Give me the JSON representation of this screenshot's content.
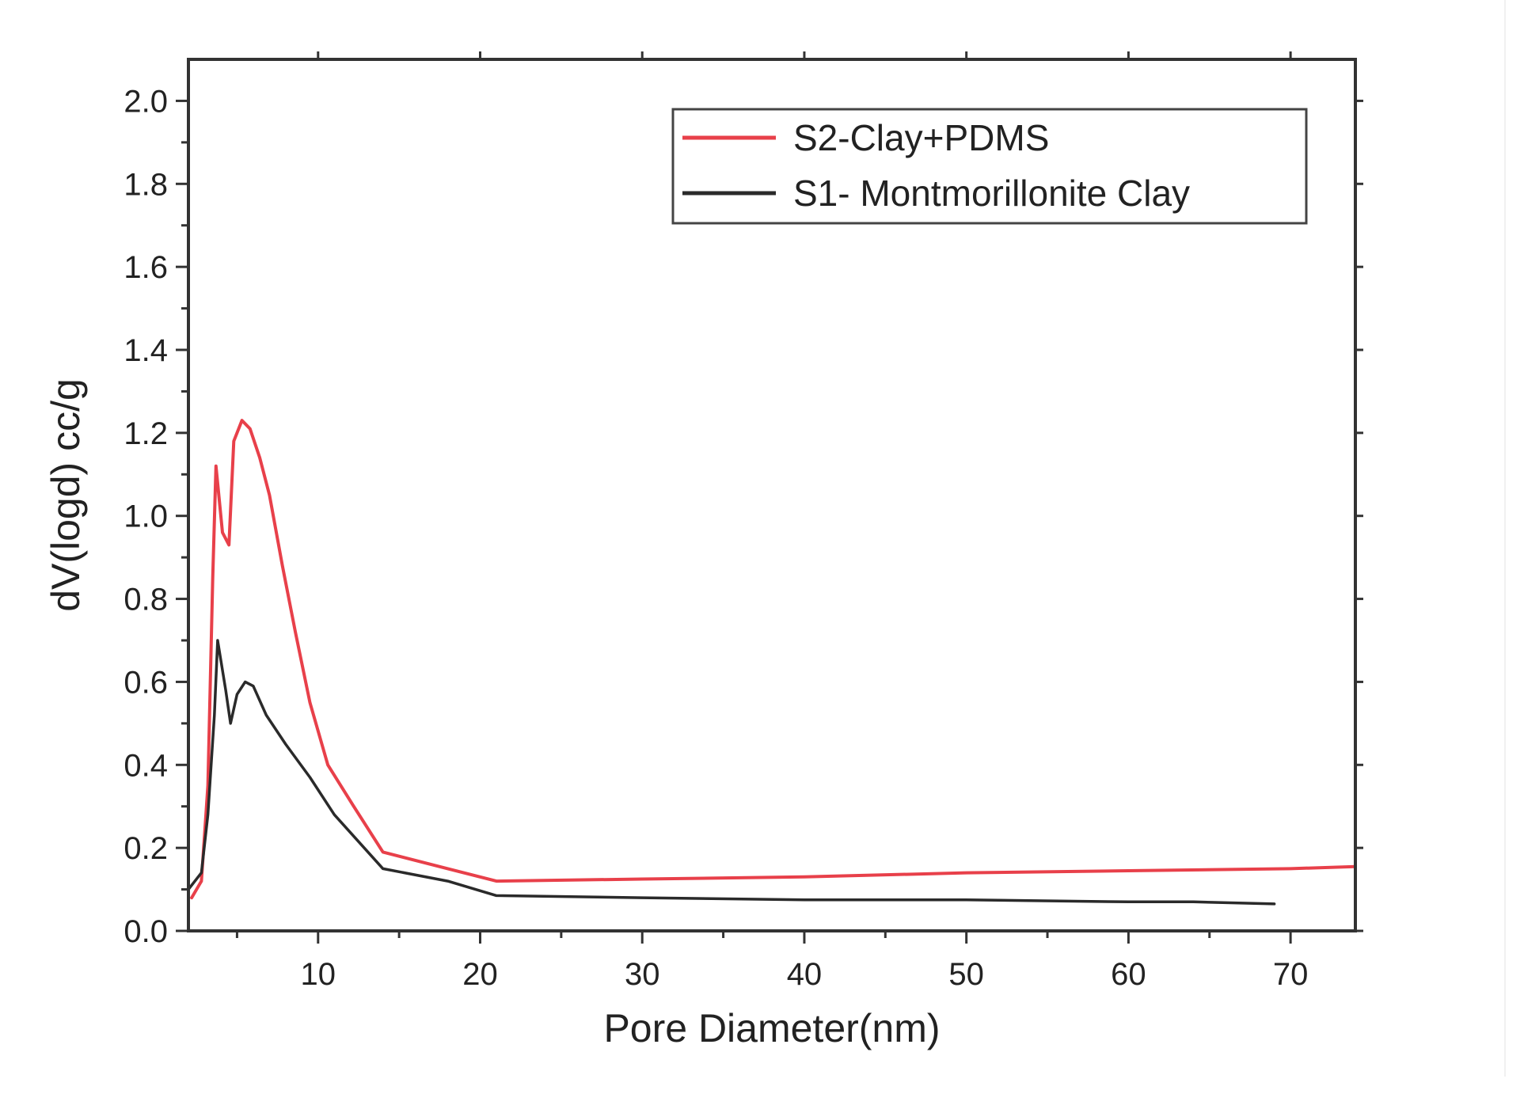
{
  "chart_data": {
    "type": "line",
    "xlabel": "Pore Diameter(nm)",
    "ylabel": "dV(logd) cc/g",
    "xlim": [
      2,
      74
    ],
    "ylim": [
      0,
      2.1
    ],
    "x_ticks": [
      10,
      20,
      30,
      40,
      50,
      60,
      70
    ],
    "x_tick_labels": [
      "10",
      "20",
      "30",
      "40",
      "50",
      "60",
      "70"
    ],
    "y_ticks": [
      0.0,
      0.2,
      0.4,
      0.6,
      0.8,
      1.0,
      1.2,
      1.4,
      1.6,
      1.8,
      2.0
    ],
    "y_tick_labels": [
      "0.0",
      "0.2",
      "0.4",
      "0.6",
      "0.8",
      "1.0",
      "1.2",
      "1.4",
      "1.6",
      "1.8",
      "2.0"
    ],
    "grid": false,
    "legend_position": "top-right",
    "series": [
      {
        "name": "S2-Clay+PDMS",
        "color": "#e8404a",
        "points": [
          [
            2.2,
            0.08
          ],
          [
            2.8,
            0.12
          ],
          [
            3.2,
            0.35
          ],
          [
            3.5,
            0.85
          ],
          [
            3.7,
            1.12
          ],
          [
            4.1,
            0.96
          ],
          [
            4.5,
            0.93
          ],
          [
            4.8,
            1.18
          ],
          [
            5.3,
            1.23
          ],
          [
            5.8,
            1.21
          ],
          [
            6.4,
            1.14
          ],
          [
            7.0,
            1.05
          ],
          [
            7.8,
            0.88
          ],
          [
            8.6,
            0.72
          ],
          [
            9.5,
            0.55
          ],
          [
            10.6,
            0.4
          ],
          [
            12.2,
            0.3
          ],
          [
            14.0,
            0.19
          ],
          [
            18.0,
            0.15
          ],
          [
            21.0,
            0.12
          ],
          [
            30.0,
            0.125
          ],
          [
            40.0,
            0.13
          ],
          [
            50.0,
            0.14
          ],
          [
            60.0,
            0.145
          ],
          [
            70.0,
            0.15
          ],
          [
            74.0,
            0.155
          ]
        ]
      },
      {
        "name": "S1- Montmorillonite Clay",
        "color": "#2a2a2a",
        "points": [
          [
            2.0,
            0.1
          ],
          [
            2.8,
            0.14
          ],
          [
            3.2,
            0.28
          ],
          [
            3.6,
            0.52
          ],
          [
            3.8,
            0.7
          ],
          [
            4.3,
            0.58
          ],
          [
            4.6,
            0.5
          ],
          [
            5.0,
            0.57
          ],
          [
            5.5,
            0.6
          ],
          [
            6.0,
            0.59
          ],
          [
            6.8,
            0.52
          ],
          [
            8.0,
            0.45
          ],
          [
            9.5,
            0.37
          ],
          [
            11.0,
            0.28
          ],
          [
            14.0,
            0.15
          ],
          [
            18.0,
            0.12
          ],
          [
            21.0,
            0.085
          ],
          [
            30.0,
            0.08
          ],
          [
            40.0,
            0.075
          ],
          [
            50.0,
            0.075
          ],
          [
            60.0,
            0.07
          ],
          [
            64.0,
            0.07
          ],
          [
            69.0,
            0.065
          ]
        ]
      }
    ]
  }
}
